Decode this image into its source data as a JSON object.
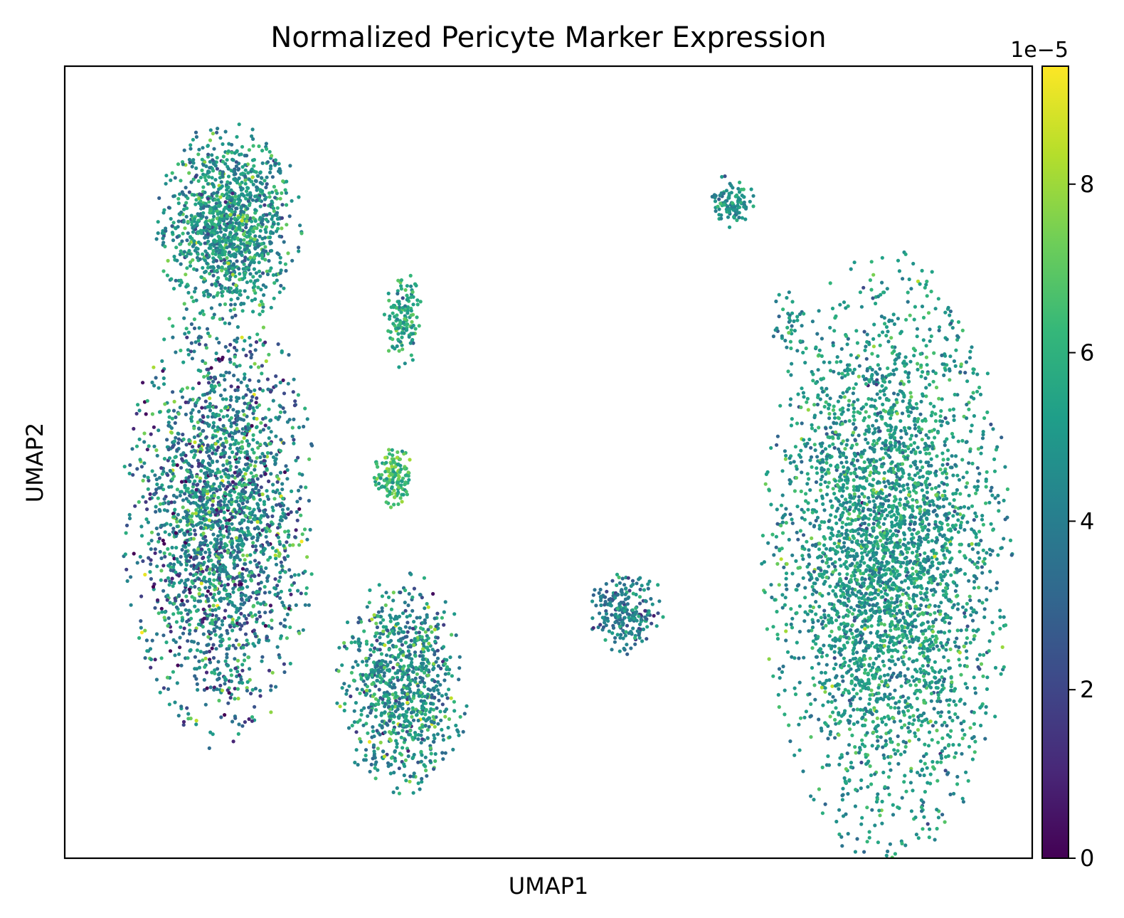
{
  "chart_data": {
    "type": "scatter",
    "title": "Normalized Pericyte Marker Expression",
    "xlabel": "UMAP1",
    "ylabel": "UMAP2",
    "x_ticks": false,
    "y_ticks": false,
    "grid": false,
    "colorbar": {
      "colormap": "viridis",
      "range": [
        0,
        9.4
      ],
      "ticks": [
        0,
        2,
        4,
        6,
        8
      ],
      "tick_labels": [
        "0",
        "2",
        "4",
        "6",
        "8"
      ],
      "offset_label": "1e−5",
      "colors": [
        "#440154",
        "#482878",
        "#3e4989",
        "#31688e",
        "#26828e",
        "#1f9e89",
        "#35b779",
        "#6ece58",
        "#b5de2b",
        "#fde725"
      ]
    },
    "clusters": [
      {
        "cx": 0.17,
        "cy": 0.8,
        "rx": 0.065,
        "ry": 0.11,
        "n": 1200,
        "mean": 4.9,
        "sd": 1.3
      },
      {
        "cx": 0.16,
        "cy": 0.43,
        "rx": 0.085,
        "ry": 0.25,
        "n": 2300,
        "mean": 4.2,
        "sd": 1.8
      },
      {
        "cx": 0.35,
        "cy": 0.68,
        "rx": 0.017,
        "ry": 0.055,
        "n": 140,
        "mean": 5.6,
        "sd": 1.0
      },
      {
        "cx": 0.34,
        "cy": 0.48,
        "rx": 0.018,
        "ry": 0.035,
        "n": 140,
        "mean": 6.3,
        "sd": 1.0
      },
      {
        "cx": 0.35,
        "cy": 0.22,
        "rx": 0.06,
        "ry": 0.12,
        "n": 900,
        "mean": 4.7,
        "sd": 1.4
      },
      {
        "cx": 0.69,
        "cy": 0.83,
        "rx": 0.02,
        "ry": 0.03,
        "n": 110,
        "mean": 4.6,
        "sd": 1.0
      },
      {
        "cx": 0.58,
        "cy": 0.31,
        "rx": 0.035,
        "ry": 0.05,
        "n": 230,
        "mean": 3.9,
        "sd": 1.2
      },
      {
        "cx": 0.75,
        "cy": 0.68,
        "rx": 0.018,
        "ry": 0.04,
        "n": 40,
        "mean": 4.6,
        "sd": 1.0
      },
      {
        "cx": 0.85,
        "cy": 0.38,
        "rx": 0.11,
        "ry": 0.33,
        "n": 3600,
        "mean": 5.0,
        "sd": 1.1
      }
    ]
  }
}
